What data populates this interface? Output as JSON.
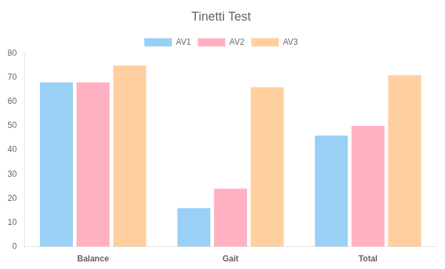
{
  "chart_data": {
    "type": "bar",
    "title": "Tinetti Test",
    "categories": [
      "Balance",
      "Gait",
      "Total"
    ],
    "series": [
      {
        "name": "AV1",
        "values": [
          68,
          16,
          46
        ]
      },
      {
        "name": "AV2",
        "values": [
          68,
          24,
          50
        ]
      },
      {
        "name": "AV3",
        "values": [
          75,
          66,
          71
        ]
      }
    ],
    "ylim": [
      0,
      80
    ],
    "yticks": [
      0,
      10,
      20,
      30,
      40,
      50,
      60,
      70,
      80
    ],
    "grid": false,
    "legend": "top"
  }
}
